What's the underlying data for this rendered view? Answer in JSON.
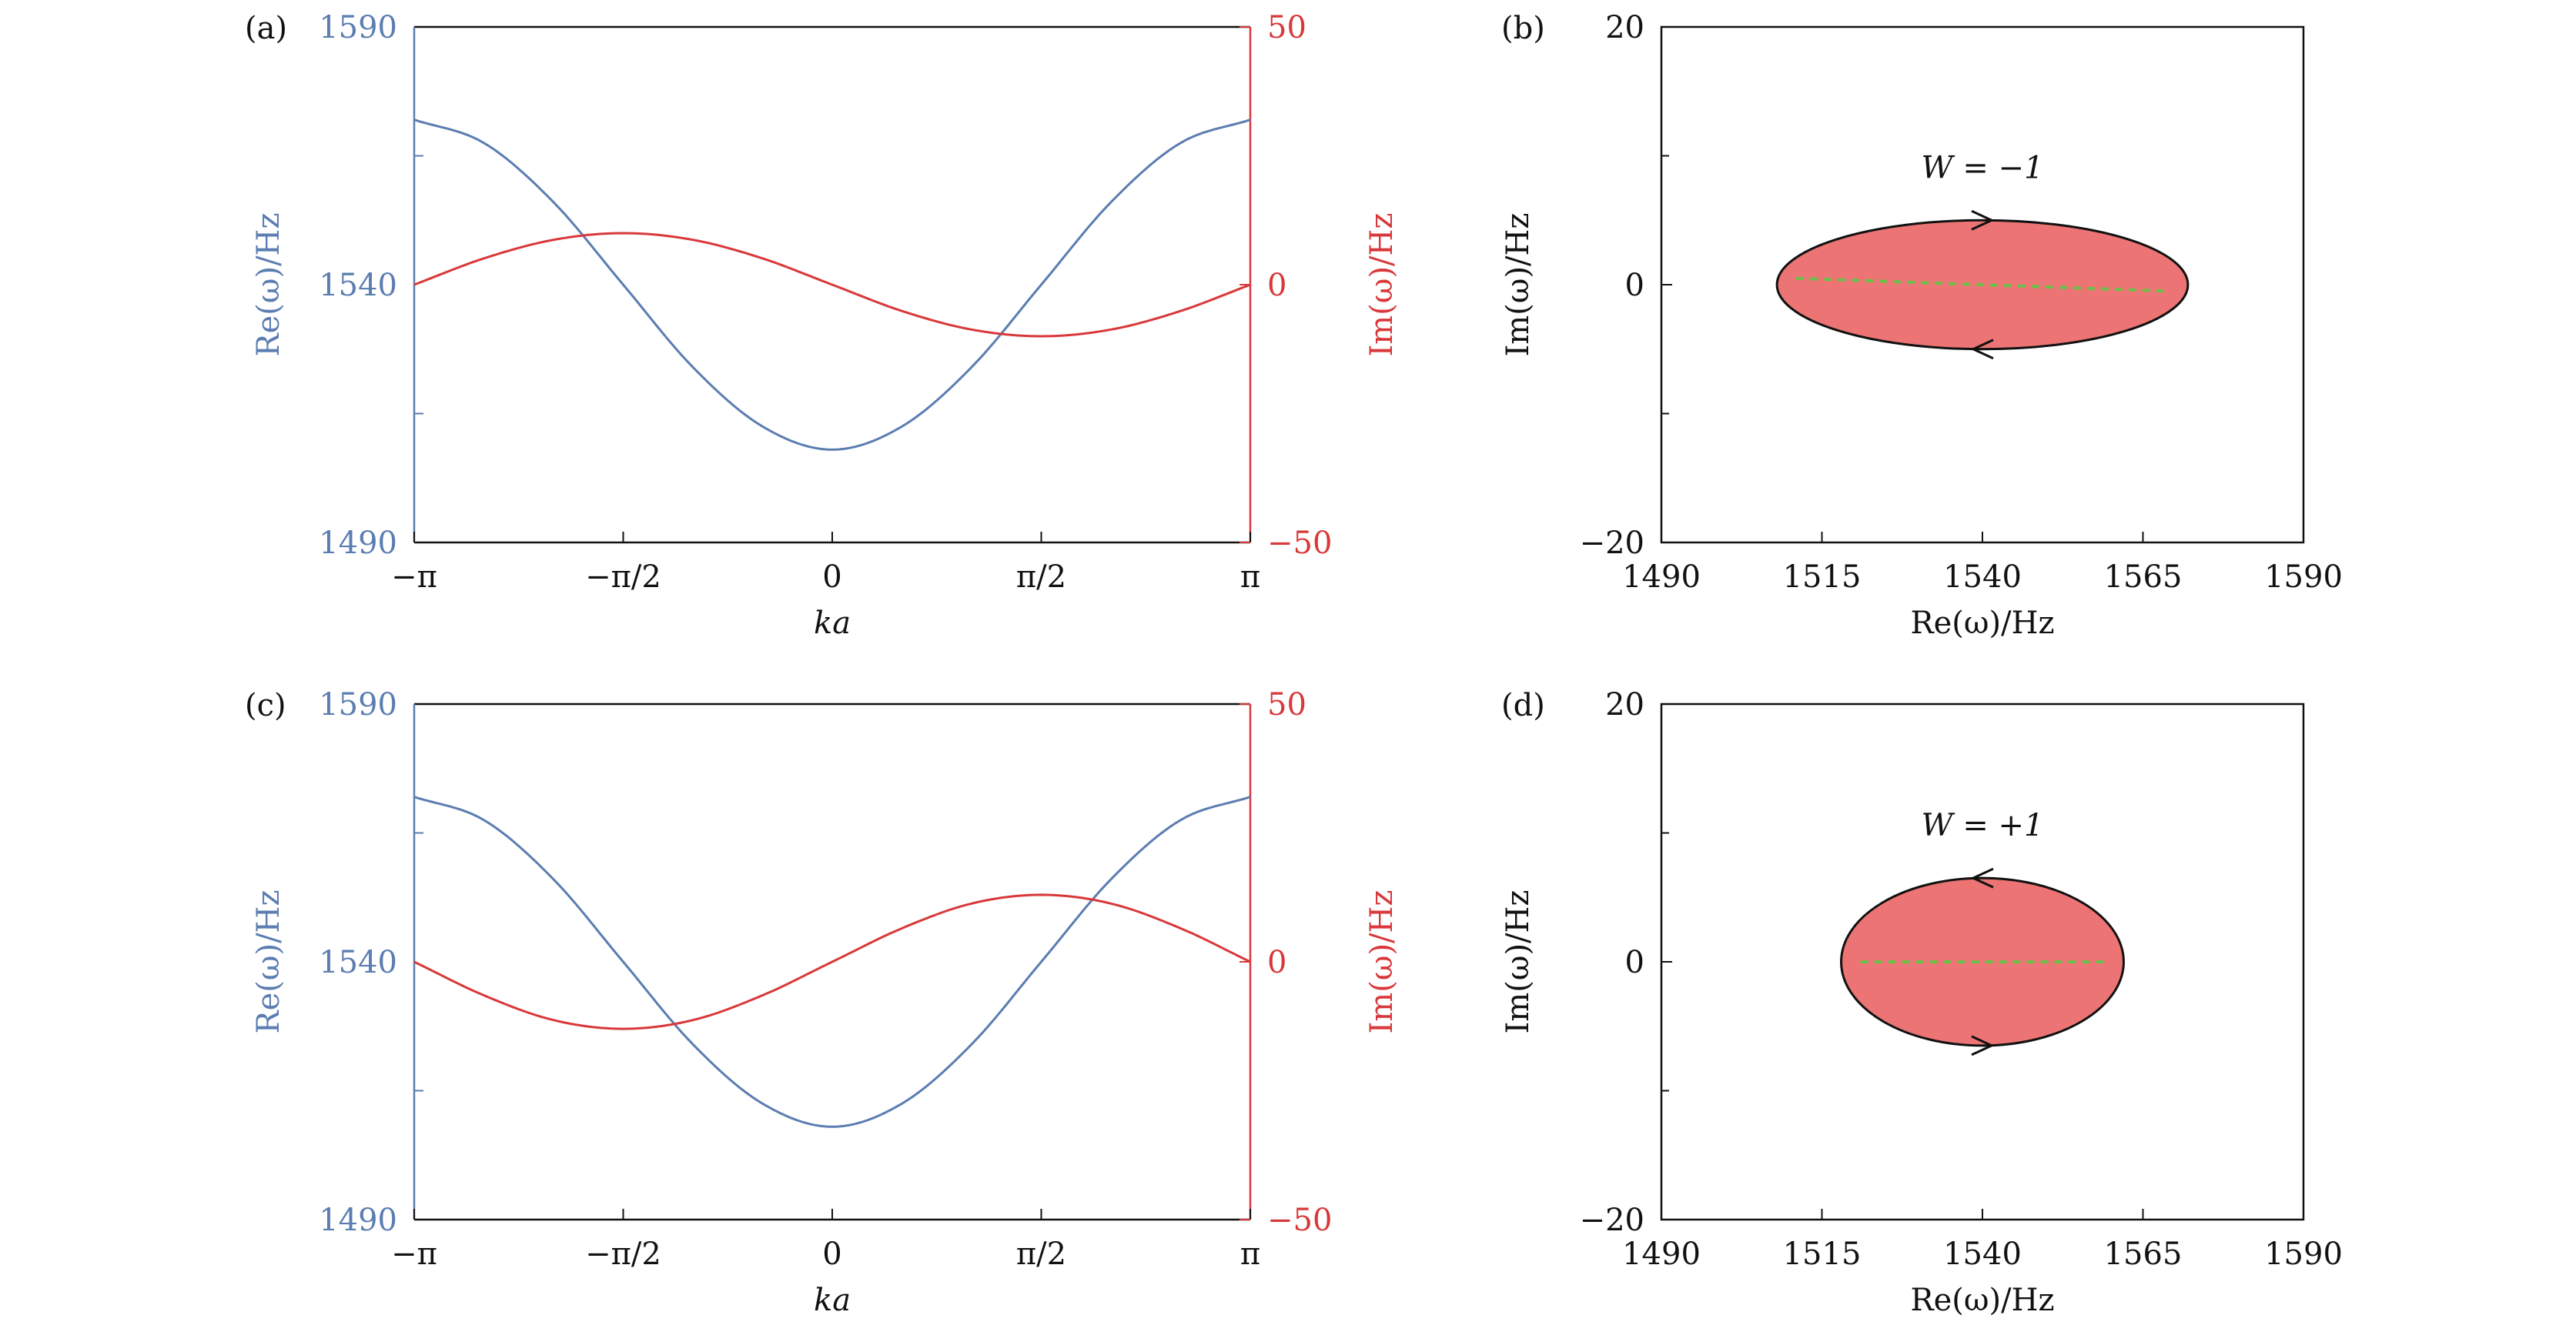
{
  "colors": {
    "real": "#5b7db1",
    "imag": "#d9383a",
    "fill": "#ec7474",
    "green": "#6cc04a",
    "axis": "#111111"
  },
  "chart_data": [
    {
      "panel_label": "(a)",
      "type": "line",
      "xlabel": "ka",
      "ylabel_left": "Re(ω)/Hz",
      "ylabel_right": "Im(ω)/Hz",
      "xlim": [
        -3.14159,
        3.14159
      ],
      "ylim_left": [
        1490,
        1590
      ],
      "ylim_right": [
        -50,
        50
      ],
      "x_ticks": [
        "−π",
        "−π/2",
        "0",
        "π/2",
        "π"
      ],
      "y_ticks_left": [
        "1590",
        "1540",
        "1490"
      ],
      "y_ticks_right": [
        "50",
        "0",
        "−50"
      ],
      "series": [
        {
          "axis": "left",
          "color": "#5b7db1",
          "x": [
            -3.1416,
            -2.618,
            -2.0944,
            -1.5708,
            -1.0472,
            -0.5236,
            0,
            0.5236,
            1.0472,
            1.5708,
            2.0944,
            2.618,
            3.1416
          ],
          "values": [
            1572,
            1567.5,
            1556,
            1540,
            1524,
            1512.5,
            1508,
            1512.5,
            1524,
            1540,
            1556,
            1567.5,
            1572
          ]
        },
        {
          "axis": "right",
          "color": "#d9383a",
          "x": [
            -3.1416,
            -2.618,
            -2.0944,
            -1.5708,
            -1.0472,
            -0.5236,
            0,
            0.5236,
            1.0472,
            1.5708,
            2.0944,
            2.618,
            3.1416
          ],
          "values": [
            0,
            5.1,
            8.7,
            10,
            8.7,
            5.1,
            0,
            -5.1,
            -8.7,
            -10,
            -8.7,
            -5.1,
            0
          ]
        }
      ]
    },
    {
      "panel_label": "(b)",
      "type": "area",
      "xlabel": "Re(ω)/Hz",
      "ylabel": "Im(ω)/Hz",
      "xlim": [
        1490,
        1590
      ],
      "ylim": [
        -20,
        20
      ],
      "x_ticks": [
        "1490",
        "1515",
        "1540",
        "1565",
        "1590"
      ],
      "y_ticks": [
        "20",
        "0",
        "−20"
      ],
      "annotation": "W = −1",
      "loop": {
        "center": [
          1540,
          0
        ],
        "re_radius": 32,
        "im_radius": 5,
        "direction": "clockwise"
      },
      "dashed_segment": {
        "x": [
          1511,
          1569
        ],
        "y": [
          0.5,
          -0.5
        ]
      }
    },
    {
      "panel_label": "(c)",
      "type": "line",
      "xlabel": "ka",
      "ylabel_left": "Re(ω)/Hz",
      "ylabel_right": "Im(ω)/Hz",
      "xlim": [
        -3.14159,
        3.14159
      ],
      "ylim_left": [
        1490,
        1590
      ],
      "ylim_right": [
        -50,
        50
      ],
      "x_ticks": [
        "−π",
        "−π/2",
        "0",
        "π/2",
        "π"
      ],
      "y_ticks_left": [
        "1590",
        "1540",
        "1490"
      ],
      "y_ticks_right": [
        "50",
        "0",
        "−50"
      ],
      "series": [
        {
          "axis": "left",
          "color": "#5b7db1",
          "x": [
            -3.1416,
            -2.618,
            -2.0944,
            -1.5708,
            -1.0472,
            -0.5236,
            0,
            0.5236,
            1.0472,
            1.5708,
            2.0944,
            2.618,
            3.1416
          ],
          "values": [
            1572,
            1567.5,
            1556,
            1540,
            1524,
            1512.5,
            1508,
            1512.5,
            1524,
            1540,
            1556,
            1567.5,
            1572
          ]
        },
        {
          "axis": "right",
          "color": "#d9383a",
          "x": [
            -3.1416,
            -2.618,
            -2.0944,
            -1.5708,
            -1.0472,
            -0.5236,
            0,
            0.5236,
            1.0472,
            1.5708,
            2.0944,
            2.618,
            3.1416
          ],
          "values": [
            0,
            -6.5,
            -11.3,
            -13,
            -11.3,
            -6.5,
            0,
            6.5,
            11.3,
            13,
            11.3,
            6.5,
            0
          ]
        }
      ]
    },
    {
      "panel_label": "(d)",
      "type": "area",
      "xlabel": "Re(ω)/Hz",
      "ylabel": "Im(ω)/Hz",
      "xlim": [
        1490,
        1590
      ],
      "ylim": [
        -20,
        20
      ],
      "x_ticks": [
        "1490",
        "1515",
        "1540",
        "1565",
        "1590"
      ],
      "y_ticks": [
        "20",
        "0",
        "−20"
      ],
      "annotation": "W = +1",
      "loop": {
        "center": [
          1540,
          0
        ],
        "re_radius": 22,
        "im_radius": 6.5,
        "direction": "counterclockwise"
      },
      "dashed_segment": {
        "x": [
          1521,
          1559
        ],
        "y": [
          0,
          0
        ]
      }
    }
  ]
}
